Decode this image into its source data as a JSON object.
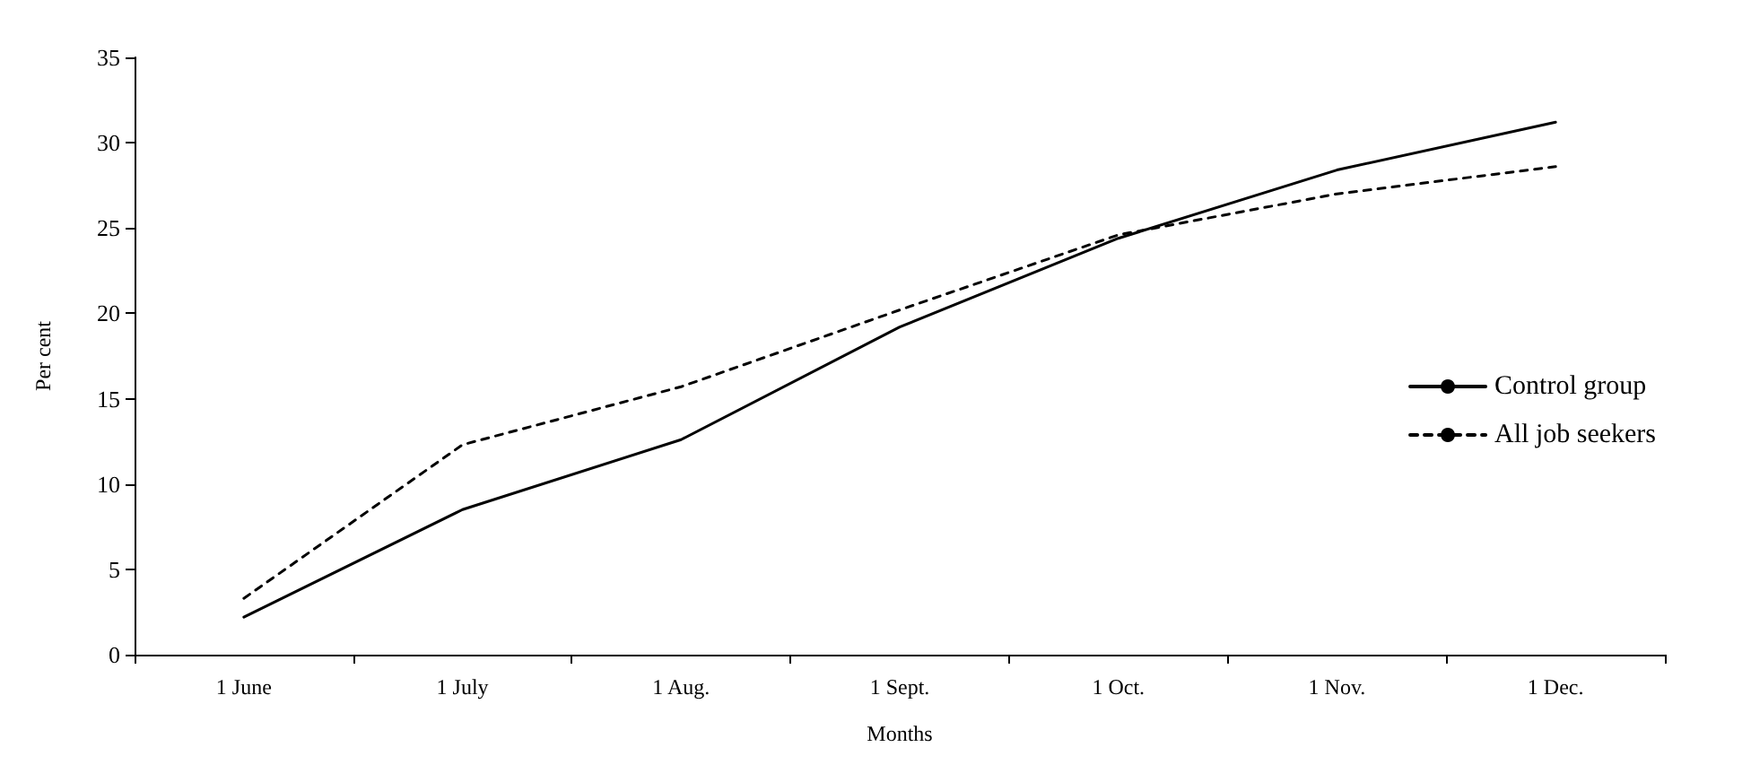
{
  "chart_data": {
    "type": "line",
    "xlabel": "Months",
    "ylabel": "Per cent",
    "categories": [
      "1 June",
      "1 July",
      "1 Aug.",
      "1 Sept.",
      "1 Oct.",
      "1 Nov.",
      "1 Dec."
    ],
    "series": [
      {
        "name": "Control group",
        "color": "#000000",
        "line_style": "solid",
        "values": [
          2.2,
          8.5,
          12.6,
          19.2,
          24.4,
          28.4,
          31.2
        ]
      },
      {
        "name": "All job seekers",
        "color": "#000000",
        "line_style": "dashed",
        "values": [
          3.3,
          12.3,
          15.7,
          20.2,
          24.6,
          27.0,
          28.6
        ]
      }
    ],
    "ylim": [
      0,
      35
    ],
    "yticks": [
      0,
      5,
      10,
      15,
      20,
      25,
      30,
      35
    ],
    "grid": false,
    "legend": "right"
  }
}
